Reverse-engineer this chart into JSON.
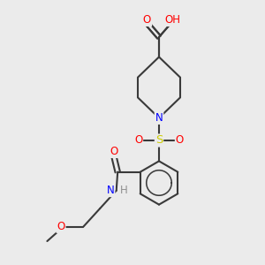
{
  "bg_color": "#ebebeb",
  "atom_colors": {
    "C": "#000000",
    "O": "#ff0000",
    "N": "#0000ff",
    "S": "#cccc00",
    "H": "#909090"
  },
  "font_size": 8.5,
  "line_width": 1.5,
  "line_color": "#3a3a3a",
  "figsize": [
    3.0,
    3.0
  ],
  "dpi": 100
}
